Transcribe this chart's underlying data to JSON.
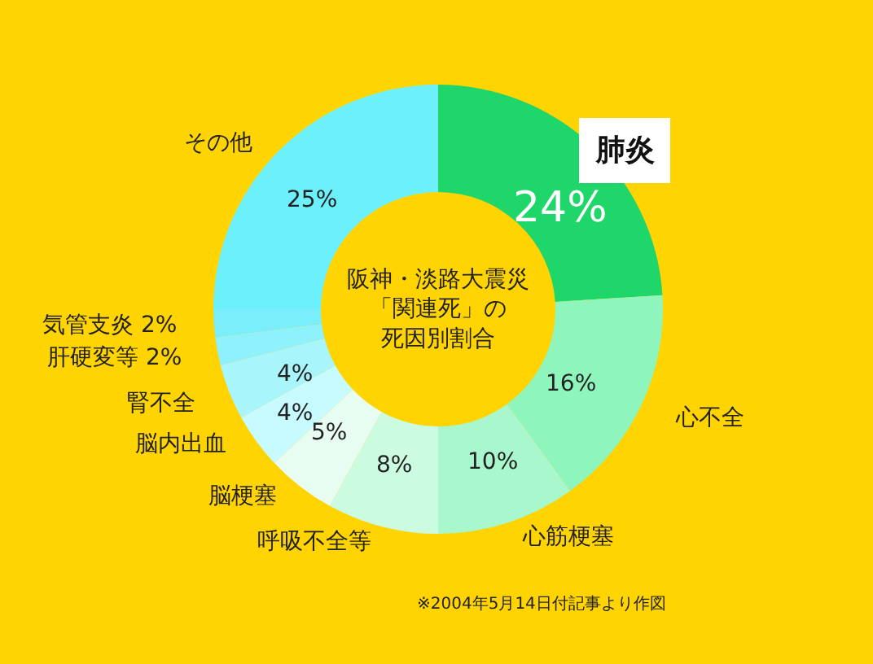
{
  "chart_data": {
    "type": "donut",
    "title": "阪神・淡路大震災「関連死」の死因別割合",
    "categories": [
      "肺炎",
      "心不全",
      "心筋梗塞",
      "呼吸不全等",
      "脳梗塞",
      "脳内出血",
      "腎不全",
      "肝硬変等",
      "気管支炎",
      "その他"
    ],
    "values": [
      24,
      16,
      10,
      8,
      5,
      4,
      4,
      2,
      2,
      25
    ],
    "value_labels": [
      "24%",
      "16%",
      "10%",
      "8%",
      "5%",
      "4%",
      "4%",
      "2%",
      "2%",
      "25%"
    ],
    "colors": [
      "#1fd66a",
      "#8ef5bd",
      "#a9f7cd",
      "#cbfbe0",
      "#e8fdf2",
      "#c8fbff",
      "#a8f6fc",
      "#8ef1fb",
      "#7aeffb",
      "#6cf0fb"
    ],
    "annotations": [
      "※2004年5月14日付記事より作図"
    ],
    "legend": false
  }
}
